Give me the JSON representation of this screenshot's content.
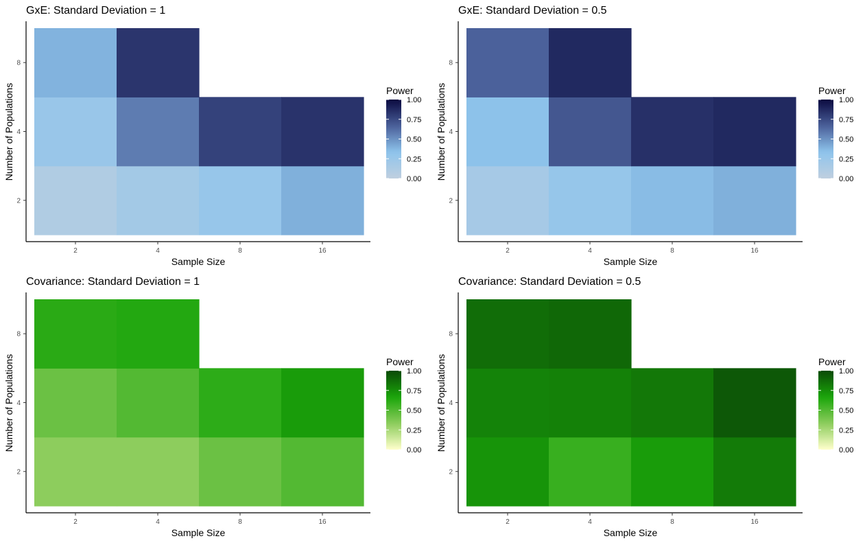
{
  "chart_data": [
    {
      "type": "heatmap",
      "title": "GxE: Standard Deviation = 1",
      "xlabel": "Sample Size",
      "ylabel": "Number of Populations",
      "x_categories": [
        "2",
        "4",
        "8",
        "16"
      ],
      "y_categories": [
        "2",
        "4",
        "8"
      ],
      "cells": [
        {
          "x": "2",
          "y": "2",
          "value": 0.1
        },
        {
          "x": "4",
          "y": "2",
          "value": 0.19
        },
        {
          "x": "8",
          "y": "2",
          "value": 0.27
        },
        {
          "x": "16",
          "y": "2",
          "value": 0.4
        },
        {
          "x": "2",
          "y": "4",
          "value": 0.26
        },
        {
          "x": "4",
          "y": "4",
          "value": 0.57
        },
        {
          "x": "8",
          "y": "4",
          "value": 0.78
        },
        {
          "x": "16",
          "y": "4",
          "value": 0.84
        },
        {
          "x": "2",
          "y": "8",
          "value": 0.39
        },
        {
          "x": "4",
          "y": "8",
          "value": 0.83
        }
      ],
      "legend": {
        "title": "Power",
        "ticks": [
          "0.00",
          "0.25",
          "0.50",
          "0.75",
          "1.00"
        ],
        "range": [
          0,
          1
        ],
        "colors": [
          "#bfcfdf",
          "#8ec4ec",
          "#4a5f99",
          "#0a0a40"
        ]
      },
      "grid": false
    },
    {
      "type": "heatmap",
      "title": "GxE: Standard Deviation = 0.5",
      "xlabel": "Sample Size",
      "ylabel": "Number of Populations",
      "x_categories": [
        "2",
        "4",
        "8",
        "16"
      ],
      "y_categories": [
        "2",
        "4",
        "8"
      ],
      "cells": [
        {
          "x": "2",
          "y": "2",
          "value": 0.17
        },
        {
          "x": "4",
          "y": "2",
          "value": 0.28
        },
        {
          "x": "8",
          "y": "2",
          "value": 0.36
        },
        {
          "x": "16",
          "y": "2",
          "value": 0.4
        },
        {
          "x": "2",
          "y": "4",
          "value": 0.34
        },
        {
          "x": "4",
          "y": "4",
          "value": 0.7
        },
        {
          "x": "8",
          "y": "4",
          "value": 0.85
        },
        {
          "x": "16",
          "y": "4",
          "value": 0.88
        },
        {
          "x": "2",
          "y": "8",
          "value": 0.66
        },
        {
          "x": "4",
          "y": "8",
          "value": 0.88
        }
      ],
      "legend": {
        "title": "Power",
        "ticks": [
          "0.00",
          "0.25",
          "0.50",
          "0.75",
          "1.00"
        ],
        "range": [
          0,
          1
        ],
        "colors": [
          "#bfcfdf",
          "#8ec4ec",
          "#4a5f99",
          "#0a0a40"
        ]
      },
      "grid": false
    },
    {
      "type": "heatmap",
      "title": "Covariance: Standard Deviation = 1",
      "xlabel": "Sample Size",
      "ylabel": "Number of Populations",
      "x_categories": [
        "2",
        "4",
        "8",
        "16"
      ],
      "y_categories": [
        "2",
        "4",
        "8"
      ],
      "cells": [
        {
          "x": "2",
          "y": "2",
          "value": 0.33
        },
        {
          "x": "4",
          "y": "2",
          "value": 0.33
        },
        {
          "x": "8",
          "y": "2",
          "value": 0.43
        },
        {
          "x": "16",
          "y": "2",
          "value": 0.5
        },
        {
          "x": "2",
          "y": "4",
          "value": 0.43
        },
        {
          "x": "4",
          "y": "4",
          "value": 0.5
        },
        {
          "x": "8",
          "y": "4",
          "value": 0.61
        },
        {
          "x": "16",
          "y": "4",
          "value": 0.7
        },
        {
          "x": "2",
          "y": "8",
          "value": 0.62
        },
        {
          "x": "4",
          "y": "8",
          "value": 0.64
        }
      ],
      "legend": {
        "title": "Power",
        "ticks": [
          "0.00",
          "0.25",
          "0.50",
          "0.75",
          "1.00"
        ],
        "range": [
          0,
          1
        ],
        "colors": [
          "#ffffcc",
          "#8ccc5c",
          "#1aa50a",
          "#0b4a06"
        ]
      },
      "grid": false
    },
    {
      "type": "heatmap",
      "title": "Covariance: Standard Deviation = 0.5",
      "xlabel": "Sample Size",
      "ylabel": "Number of Populations",
      "x_categories": [
        "2",
        "4",
        "8",
        "16"
      ],
      "y_categories": [
        "2",
        "4",
        "8"
      ],
      "cells": [
        {
          "x": "2",
          "y": "2",
          "value": 0.73
        },
        {
          "x": "4",
          "y": "2",
          "value": 0.58
        },
        {
          "x": "8",
          "y": "2",
          "value": 0.7
        },
        {
          "x": "16",
          "y": "2",
          "value": 0.82
        },
        {
          "x": "2",
          "y": "4",
          "value": 0.79
        },
        {
          "x": "4",
          "y": "4",
          "value": 0.8
        },
        {
          "x": "8",
          "y": "4",
          "value": 0.83
        },
        {
          "x": "16",
          "y": "4",
          "value": 0.95
        },
        {
          "x": "2",
          "y": "8",
          "value": 0.87
        },
        {
          "x": "4",
          "y": "8",
          "value": 0.89
        }
      ],
      "legend": {
        "title": "Power",
        "ticks": [
          "0.00",
          "0.25",
          "0.50",
          "0.75",
          "1.00"
        ],
        "range": [
          0,
          1
        ],
        "colors": [
          "#ffffcc",
          "#8ccc5c",
          "#1aa50a",
          "#0b4a06"
        ]
      },
      "grid": false
    }
  ]
}
